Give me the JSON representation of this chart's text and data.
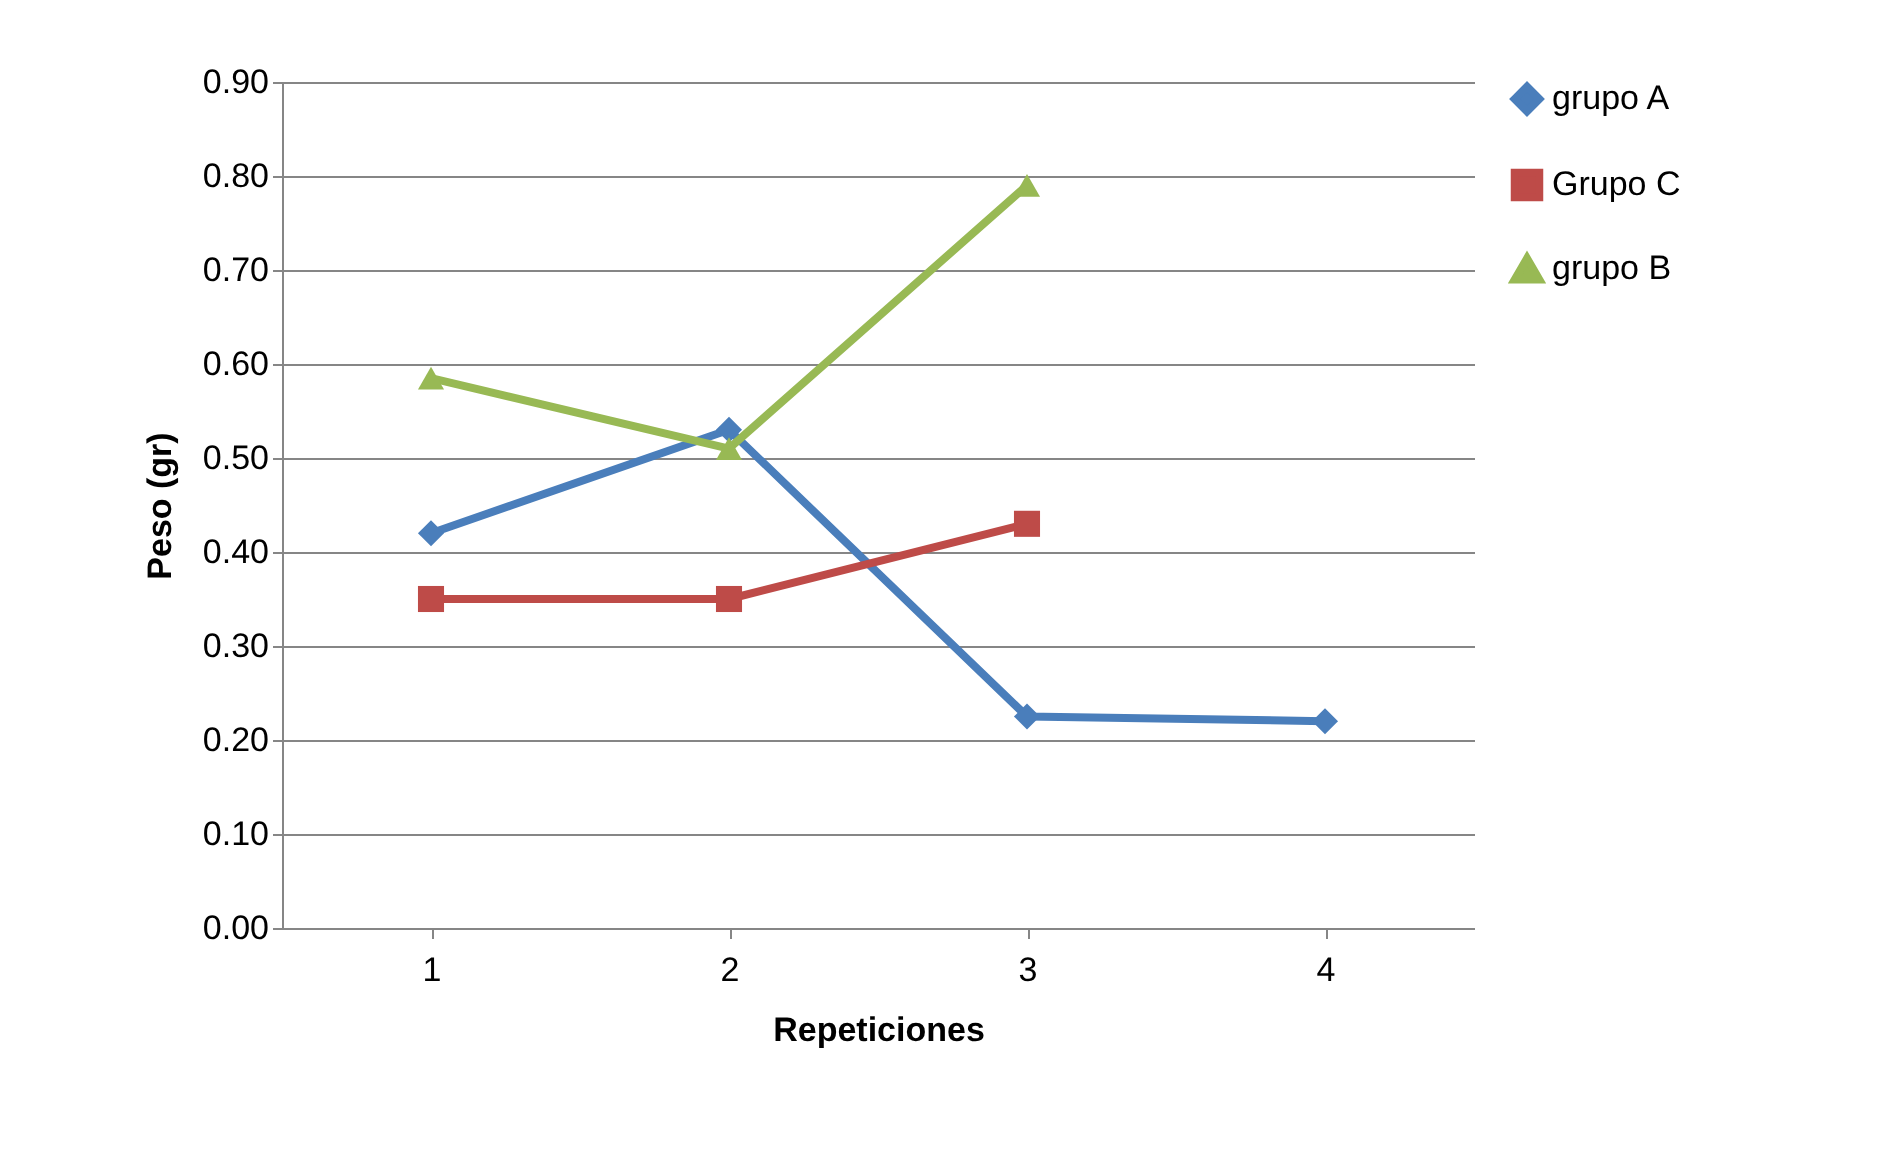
{
  "chart_data": {
    "type": "line",
    "xlabel": "Repeticiones",
    "ylabel": "Peso (gr)",
    "categories": [
      "1",
      "2",
      "3",
      "4"
    ],
    "series": [
      {
        "name": "grupo A",
        "color": "#4a7ebb",
        "marker": "diamond",
        "values": [
          0.42,
          0.53,
          0.225,
          0.22
        ]
      },
      {
        "name": "Grupo C",
        "color": "#be4b48",
        "marker": "square",
        "values": [
          0.35,
          0.35,
          0.43,
          null
        ]
      },
      {
        "name": "grupo B",
        "color": "#98b954",
        "marker": "triangle",
        "values": [
          0.585,
          0.51,
          0.79,
          null
        ]
      }
    ],
    "ylim": [
      0,
      0.9
    ],
    "yticks": [
      {
        "value": 0,
        "label": "0.00"
      },
      {
        "value": 0.1,
        "label": "0.10"
      },
      {
        "value": 0.2,
        "label": "0.20"
      },
      {
        "value": 0.3,
        "label": "0.30"
      },
      {
        "value": 0.4,
        "label": "0.40"
      },
      {
        "value": 0.5,
        "label": "0.50"
      },
      {
        "value": 0.6,
        "label": "0.60"
      },
      {
        "value": 0.7,
        "label": "0.70"
      },
      {
        "value": 0.8,
        "label": "0.80"
      },
      {
        "value": 0.9,
        "label": "0.90"
      }
    ],
    "grid": "y",
    "legend": "right",
    "line_style": "solid"
  }
}
